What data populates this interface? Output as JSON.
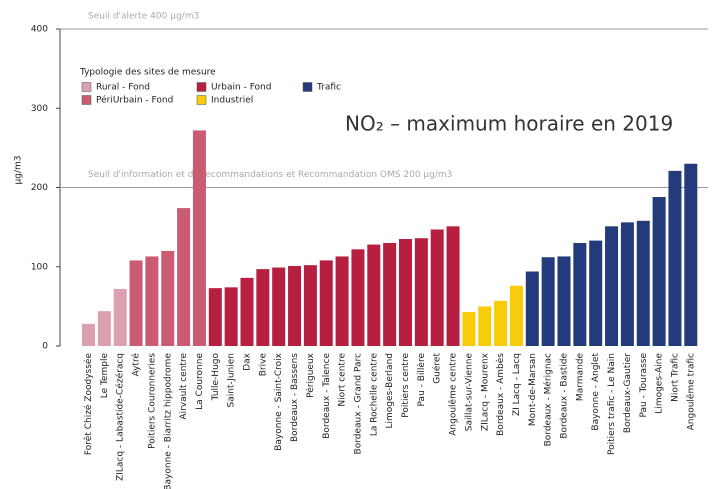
{
  "chart_data": {
    "type": "bar",
    "title": "NO₂ – maximum horaire en 2019",
    "y_label": "µg/m3",
    "legend_title": "Typologie des sites de mesure",
    "categories": [
      "Forêt Chizé Zoodyssée",
      "Le Temple",
      "ZILacq - Labastide-Cézéracq",
      "Aytré",
      "Poitiers Couronneries",
      "Bayonne - Biarritz hippodrome",
      "Airvault centre",
      "La Couronne",
      "Tulle-Hugo",
      "Saint-Junien",
      "Dax",
      "Brive",
      "Bayonne - Saint-Croix",
      "Bordeaux - Bassens",
      "Périgueux",
      "Bordeaux - Talence",
      "Niort centre",
      "Bordeaux - Grand Parc",
      "La Rochelle centre",
      "Limoges-Berland",
      "Poitiers centre",
      "Pau - Billère",
      "Guéret",
      "Angoulême centre",
      "Saillat-sur-Vienne",
      "ZILacq - Mourenx",
      "Bordeaux - Ambès",
      "ZI Lacq - Lacq",
      "Mont-de-Marsan",
      "Bordeaux - Mérignac",
      "Bordeaux - Bastide",
      "Marmande",
      "Bayonne - Anglet",
      "Poitiers trafic - Le Nain",
      "Bordeaux-Gautier",
      "Pau - Tourasse",
      "Limoges-Aine",
      "Niort Trafic",
      "Angoulême trafic"
    ],
    "series": [
      {
        "name": "Rural - Fond",
        "color": "#dba1b1",
        "values": [
          28,
          44,
          72,
          null,
          null,
          null,
          null,
          null,
          null,
          null,
          null,
          null,
          null,
          null,
          null,
          null,
          null,
          null,
          null,
          null,
          null,
          null,
          null,
          null,
          null,
          null,
          null,
          null,
          null,
          null,
          null,
          null,
          null,
          null,
          null,
          null,
          null,
          null,
          null
        ]
      },
      {
        "name": "PériUrbain - Fond",
        "color": "#c95b73",
        "values": [
          null,
          null,
          null,
          108,
          113,
          120,
          174,
          272,
          null,
          null,
          null,
          null,
          null,
          null,
          null,
          null,
          null,
          null,
          null,
          null,
          null,
          null,
          null,
          null,
          null,
          null,
          null,
          null,
          null,
          null,
          null,
          null,
          null,
          null,
          null,
          null,
          null,
          null,
          null
        ]
      },
      {
        "name": "Urbain - Fond",
        "color": "#b61f3f",
        "values": [
          null,
          null,
          null,
          null,
          null,
          null,
          null,
          null,
          73,
          74,
          86,
          97,
          99,
          101,
          102,
          108,
          113,
          122,
          128,
          130,
          135,
          136,
          147,
          151,
          null,
          null,
          null,
          null,
          null,
          null,
          null,
          null,
          null,
          null,
          null,
          null,
          null,
          null,
          null
        ]
      },
      {
        "name": "Industriel",
        "color": "#f6cc0b",
        "values": [
          null,
          null,
          null,
          null,
          null,
          null,
          null,
          null,
          null,
          null,
          null,
          null,
          null,
          null,
          null,
          null,
          null,
          null,
          null,
          null,
          null,
          null,
          null,
          null,
          43,
          50,
          57,
          76,
          null,
          null,
          null,
          null,
          null,
          null,
          null,
          null,
          null,
          null,
          null
        ]
      },
      {
        "name": "Trafic",
        "color": "#233a7b",
        "values": [
          null,
          null,
          null,
          null,
          null,
          null,
          null,
          null,
          null,
          null,
          null,
          null,
          null,
          null,
          null,
          null,
          null,
          null,
          null,
          null,
          null,
          null,
          null,
          null,
          null,
          null,
          null,
          null,
          94,
          112,
          113,
          130,
          133,
          151,
          156,
          158,
          188,
          221,
          230
        ]
      }
    ],
    "ylim": [
      0,
      400
    ],
    "yticks": [
      0,
      100,
      200,
      300,
      400
    ],
    "reference_lines": [
      {
        "value": 400,
        "label": "Seuil d'alerte 400 µg/m3"
      },
      {
        "value": 200,
        "label": "Seuil d'information et de recommandations et Recommandation OMS 200 µg/m3"
      }
    ]
  }
}
